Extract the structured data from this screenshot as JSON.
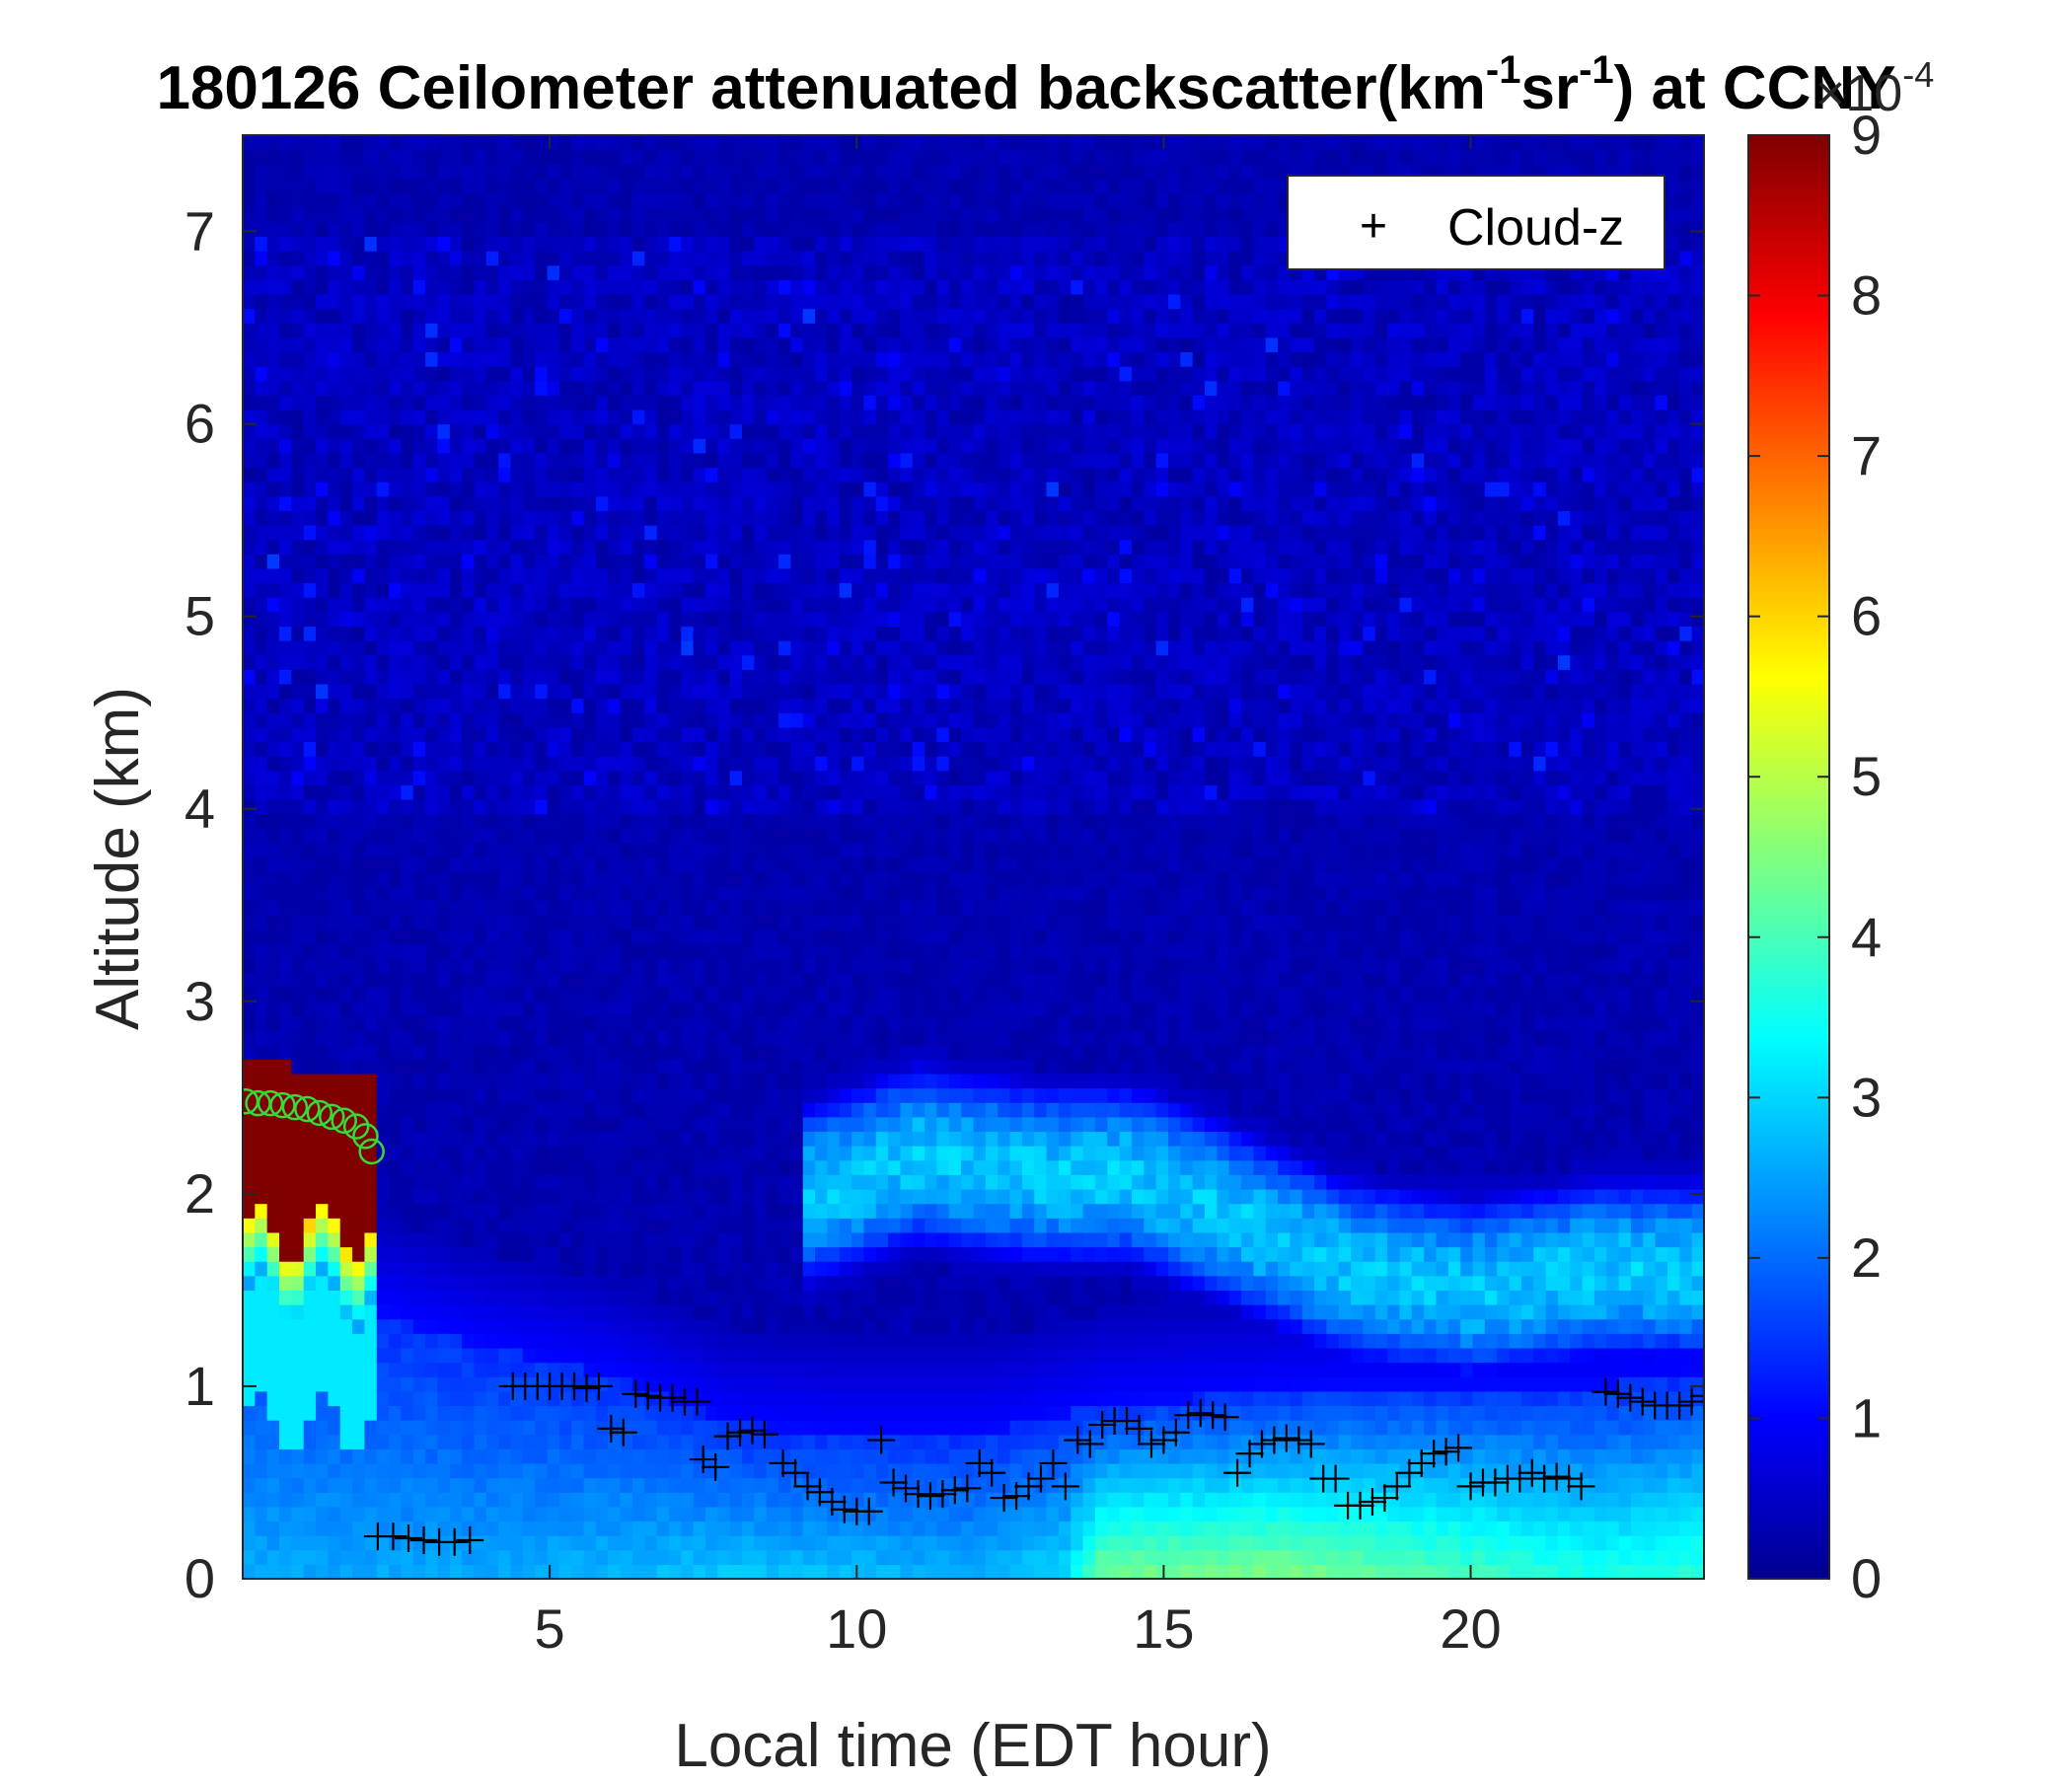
{
  "chart_data": {
    "type": "heatmap",
    "title": {
      "main": "180126 Ceilometer attenuated backscatter(km",
      "sup1": "-1",
      "mid": "sr",
      "sup2": "-1",
      "end": ") at CCNY"
    },
    "xlabel": "Local time (EDT hour)",
    "ylabel": "Altitude (km)",
    "xlim": [
      0,
      23.8
    ],
    "ylim": [
      0,
      7.5
    ],
    "x_ticks": [
      5,
      10,
      15,
      20
    ],
    "y_ticks": [
      0,
      1,
      2,
      3,
      4,
      5,
      6,
      7
    ],
    "colorbar": {
      "ticks": [
        0,
        1,
        2,
        3,
        4,
        5,
        6,
        7,
        8,
        9
      ],
      "range": [
        0,
        9
      ],
      "exponent_label_base": "×10",
      "exponent_label_power": "-4",
      "colormap": "jet"
    },
    "legend": {
      "position": "top-right",
      "entries": [
        {
          "marker": "+",
          "label": "Cloud-z"
        }
      ]
    },
    "series": [
      {
        "name": "Cloud-z",
        "marker": "plus",
        "color": "#000000",
        "points": [
          [
            2.2,
            0.22
          ],
          [
            2.45,
            0.22
          ],
          [
            2.7,
            0.21
          ],
          [
            2.95,
            0.2
          ],
          [
            3.2,
            0.19
          ],
          [
            3.45,
            0.19
          ],
          [
            3.7,
            0.2
          ],
          [
            4.4,
            1.0
          ],
          [
            4.6,
            1.0
          ],
          [
            4.8,
            1.0
          ],
          [
            5.0,
            1.0
          ],
          [
            5.2,
            1.0
          ],
          [
            5.4,
            1.0
          ],
          [
            5.6,
            0.99
          ],
          [
            5.8,
            1.0
          ],
          [
            6.0,
            0.78
          ],
          [
            6.2,
            0.76
          ],
          [
            6.4,
            0.96
          ],
          [
            6.6,
            0.95
          ],
          [
            6.8,
            0.94
          ],
          [
            7.0,
            0.94
          ],
          [
            7.2,
            0.92
          ],
          [
            7.4,
            0.92
          ],
          [
            7.5,
            0.62
          ],
          [
            7.7,
            0.58
          ],
          [
            7.9,
            0.74
          ],
          [
            8.1,
            0.76
          ],
          [
            8.3,
            0.77
          ],
          [
            8.5,
            0.75
          ],
          [
            8.8,
            0.6
          ],
          [
            9.0,
            0.55
          ],
          [
            9.2,
            0.48
          ],
          [
            9.4,
            0.45
          ],
          [
            9.6,
            0.4
          ],
          [
            9.8,
            0.36
          ],
          [
            10.0,
            0.35
          ],
          [
            10.2,
            0.35
          ],
          [
            10.4,
            0.72
          ],
          [
            10.6,
            0.5
          ],
          [
            10.8,
            0.47
          ],
          [
            11.0,
            0.44
          ],
          [
            11.2,
            0.43
          ],
          [
            11.4,
            0.44
          ],
          [
            11.6,
            0.46
          ],
          [
            11.8,
            0.47
          ],
          [
            12.0,
            0.6
          ],
          [
            12.2,
            0.55
          ],
          [
            12.4,
            0.42
          ],
          [
            12.6,
            0.43
          ],
          [
            12.8,
            0.48
          ],
          [
            13.0,
            0.52
          ],
          [
            13.2,
            0.6
          ],
          [
            13.4,
            0.48
          ],
          [
            13.6,
            0.72
          ],
          [
            13.8,
            0.7
          ],
          [
            14.0,
            0.8
          ],
          [
            14.2,
            0.82
          ],
          [
            14.4,
            0.82
          ],
          [
            14.6,
            0.78
          ],
          [
            14.8,
            0.7
          ],
          [
            15.0,
            0.72
          ],
          [
            15.2,
            0.76
          ],
          [
            15.4,
            0.85
          ],
          [
            15.6,
            0.86
          ],
          [
            15.8,
            0.85
          ],
          [
            16.0,
            0.84
          ],
          [
            16.2,
            0.55
          ],
          [
            16.4,
            0.65
          ],
          [
            16.6,
            0.7
          ],
          [
            16.8,
            0.72
          ],
          [
            17.0,
            0.73
          ],
          [
            17.2,
            0.72
          ],
          [
            17.4,
            0.7
          ],
          [
            17.6,
            0.52
          ],
          [
            17.8,
            0.52
          ],
          [
            18.0,
            0.38
          ],
          [
            18.2,
            0.38
          ],
          [
            18.4,
            0.4
          ],
          [
            18.6,
            0.42
          ],
          [
            18.8,
            0.48
          ],
          [
            19.0,
            0.55
          ],
          [
            19.2,
            0.6
          ],
          [
            19.4,
            0.65
          ],
          [
            19.6,
            0.66
          ],
          [
            19.8,
            0.68
          ],
          [
            20.0,
            0.48
          ],
          [
            20.2,
            0.5
          ],
          [
            20.4,
            0.5
          ],
          [
            20.6,
            0.52
          ],
          [
            20.8,
            0.52
          ],
          [
            21.0,
            0.55
          ],
          [
            21.2,
            0.52
          ],
          [
            21.4,
            0.53
          ],
          [
            21.6,
            0.52
          ],
          [
            21.8,
            0.48
          ],
          [
            22.2,
            0.97
          ],
          [
            22.4,
            0.96
          ],
          [
            22.6,
            0.94
          ],
          [
            22.8,
            0.92
          ],
          [
            23.0,
            0.9
          ],
          [
            23.2,
            0.9
          ],
          [
            23.4,
            0.9
          ],
          [
            23.6,
            0.92
          ],
          [
            23.8,
            0.95
          ]
        ]
      },
      {
        "name": "",
        "marker": "circle",
        "color": "#33dd33",
        "points": [
          [
            0.05,
            2.48
          ],
          [
            0.25,
            2.47
          ],
          [
            0.45,
            2.47
          ],
          [
            0.65,
            2.46
          ],
          [
            0.85,
            2.45
          ],
          [
            1.05,
            2.44
          ],
          [
            1.25,
            2.42
          ],
          [
            1.45,
            2.4
          ],
          [
            1.65,
            2.38
          ],
          [
            1.85,
            2.35
          ],
          [
            2.0,
            2.3
          ],
          [
            2.1,
            2.22
          ]
        ]
      }
    ],
    "field_regions": {
      "description_units": "backscatter value x1e-4 km^-1 sr^-1",
      "background_value": 0.3,
      "boundary_layer": {
        "top_km": [
          [
            0,
            1.6
          ],
          [
            2,
            1.4
          ],
          [
            4,
            1.2
          ],
          [
            6,
            1.05
          ],
          [
            8,
            0.8
          ],
          [
            10,
            0.75
          ],
          [
            12,
            0.75
          ],
          [
            14,
            0.9
          ],
          [
            16,
            0.95
          ],
          [
            18,
            1.0
          ],
          [
            20,
            1.0
          ],
          [
            22,
            1.0
          ],
          [
            23.8,
            1.05
          ]
        ],
        "surface_values": [
          [
            0,
            2.5
          ],
          [
            4,
            2.5
          ],
          [
            8,
            2.8
          ],
          [
            12,
            2.6
          ],
          [
            13.4,
            3.0
          ],
          [
            14,
            4.3
          ],
          [
            17,
            4.4
          ],
          [
            20,
            3.9
          ],
          [
            22,
            3.5
          ],
          [
            23.8,
            3.7
          ]
        ]
      },
      "cloud_0_2h": {
        "x": [
          0,
          2.2
        ],
        "top_km": [
          2.7,
          2.6
        ],
        "bottom_km": [
          1.8,
          1.8
        ],
        "value": 9
      },
      "aerosol_layer": {
        "x": [
          9.2,
          23.8
        ],
        "center_km": [
          [
            9.2,
            2.0
          ],
          [
            11,
            2.2
          ],
          [
            13,
            2.1
          ],
          [
            14.5,
            2.1
          ],
          [
            16,
            1.9
          ],
          [
            18,
            1.6
          ],
          [
            20,
            1.5
          ],
          [
            22,
            1.6
          ],
          [
            23.8,
            1.6
          ]
        ],
        "thickness_km": 0.7,
        "peak_value": 3.2
      }
    }
  }
}
